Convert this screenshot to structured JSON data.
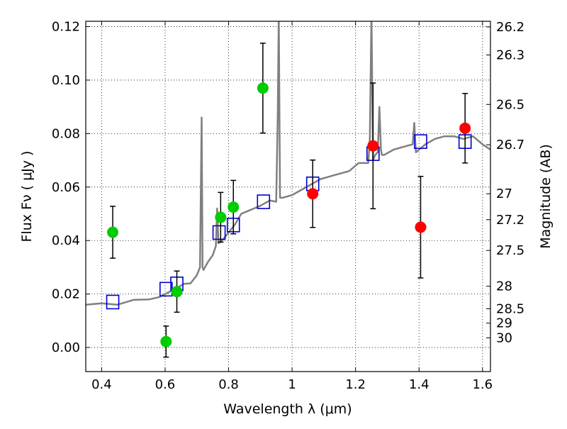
{
  "chart_data": {
    "type": "scatter",
    "xlabel": "Wavelength  λ (μm)",
    "ylabel": "Flux  Fν  ( μJy )",
    "ylabel_right": "Magnitude (AB)",
    "xlim": [
      0.35,
      1.625
    ],
    "ylim": [
      -0.009,
      0.122
    ],
    "grid": true,
    "x_ticks": [
      0.4,
      0.6,
      0.8,
      1.0,
      1.2,
      1.4,
      1.6
    ],
    "x_tick_labels": [
      "0.4",
      "0.6",
      "0.8",
      "1",
      "1.2",
      "1.4",
      "1.6"
    ],
    "y_ticks": [
      0.0,
      0.02,
      0.04,
      0.06,
      0.08,
      0.1,
      0.12
    ],
    "y_tick_labels": [
      "0.00",
      "0.02",
      "0.04",
      "0.06",
      "0.08",
      "0.10",
      "0.12"
    ],
    "right_ticks": [
      {
        "flux": 0.1199,
        "label": "26.2"
      },
      {
        "flux": 0.1094,
        "label": "26.3"
      },
      {
        "flux": 0.0909,
        "label": "26.5"
      },
      {
        "flux": 0.0758,
        "label": "26.7"
      },
      {
        "flux": 0.0575,
        "label": "27"
      },
      {
        "flux": 0.0478,
        "label": "27.2"
      },
      {
        "flux": 0.0363,
        "label": "27.5"
      },
      {
        "flux": 0.0229,
        "label": "28"
      },
      {
        "flux": 0.0145,
        "label": "28.5"
      },
      {
        "flux": 0.0091,
        "label": "29"
      },
      {
        "flux": 0.0036,
        "label": "30"
      }
    ],
    "series": [
      {
        "role": "green-points",
        "color": "#00cc00",
        "x": [
          0.435,
          0.603,
          0.637,
          0.775,
          0.815,
          0.908
        ],
        "y": [
          0.0431,
          0.0022,
          0.0209,
          0.0487,
          0.0525,
          0.097
        ],
        "yerr": [
          0.0097,
          0.0058,
          0.0077,
          0.0093,
          0.01,
          0.0168
        ]
      },
      {
        "role": "red-points",
        "color": "#ff0000",
        "x": [
          1.065,
          1.255,
          1.405,
          1.545
        ],
        "y": [
          0.0575,
          0.0754,
          0.045,
          0.082
        ],
        "yerr": [
          0.0126,
          0.0235,
          0.019,
          0.013
        ]
      },
      {
        "role": "model-photometry",
        "color": "#0000cc",
        "marker": "open-square",
        "x": [
          0.435,
          0.603,
          0.637,
          0.77,
          0.815,
          0.91,
          1.065,
          1.255,
          1.405,
          1.545
        ],
        "y": [
          0.017,
          0.0218,
          0.0238,
          0.043,
          0.0458,
          0.0545,
          0.0612,
          0.0725,
          0.077,
          0.077
        ]
      },
      {
        "role": "model-spectrum",
        "color": "#808080",
        "type": "line",
        "x": [
          0.35,
          0.4,
          0.45,
          0.5,
          0.55,
          0.58,
          0.6,
          0.62,
          0.64,
          0.66,
          0.68,
          0.7,
          0.71,
          0.715,
          0.718,
          0.721,
          0.735,
          0.75,
          0.76,
          0.764,
          0.768,
          0.78,
          0.8,
          0.82,
          0.84,
          0.86,
          0.88,
          0.9,
          0.93,
          0.95,
          0.955,
          0.958,
          0.962,
          0.97,
          1.0,
          1.03,
          1.06,
          1.09,
          1.12,
          1.15,
          1.18,
          1.21,
          1.24,
          1.245,
          1.25,
          1.255,
          1.262,
          1.27,
          1.275,
          1.28,
          1.283,
          1.29,
          1.32,
          1.35,
          1.38,
          1.385,
          1.39,
          1.42,
          1.45,
          1.48,
          1.51,
          1.54,
          1.57,
          1.6,
          1.625
        ],
        "y": [
          0.016,
          0.0165,
          0.016,
          0.0178,
          0.018,
          0.0188,
          0.02,
          0.0212,
          0.0225,
          0.0238,
          0.024,
          0.027,
          0.03,
          0.086,
          0.03,
          0.029,
          0.032,
          0.0345,
          0.038,
          0.052,
          0.039,
          0.04,
          0.043,
          0.046,
          0.05,
          0.051,
          0.052,
          0.053,
          0.055,
          0.0545,
          0.087,
          0.125,
          0.056,
          0.056,
          0.057,
          0.059,
          0.061,
          0.063,
          0.064,
          0.065,
          0.066,
          0.069,
          0.069,
          0.078,
          0.125,
          0.07,
          0.072,
          0.073,
          0.09,
          0.074,
          0.072,
          0.072,
          0.074,
          0.075,
          0.076,
          0.084,
          0.073,
          0.076,
          0.078,
          0.079,
          0.079,
          0.078,
          0.079,
          0.076,
          0.074
        ]
      }
    ]
  }
}
